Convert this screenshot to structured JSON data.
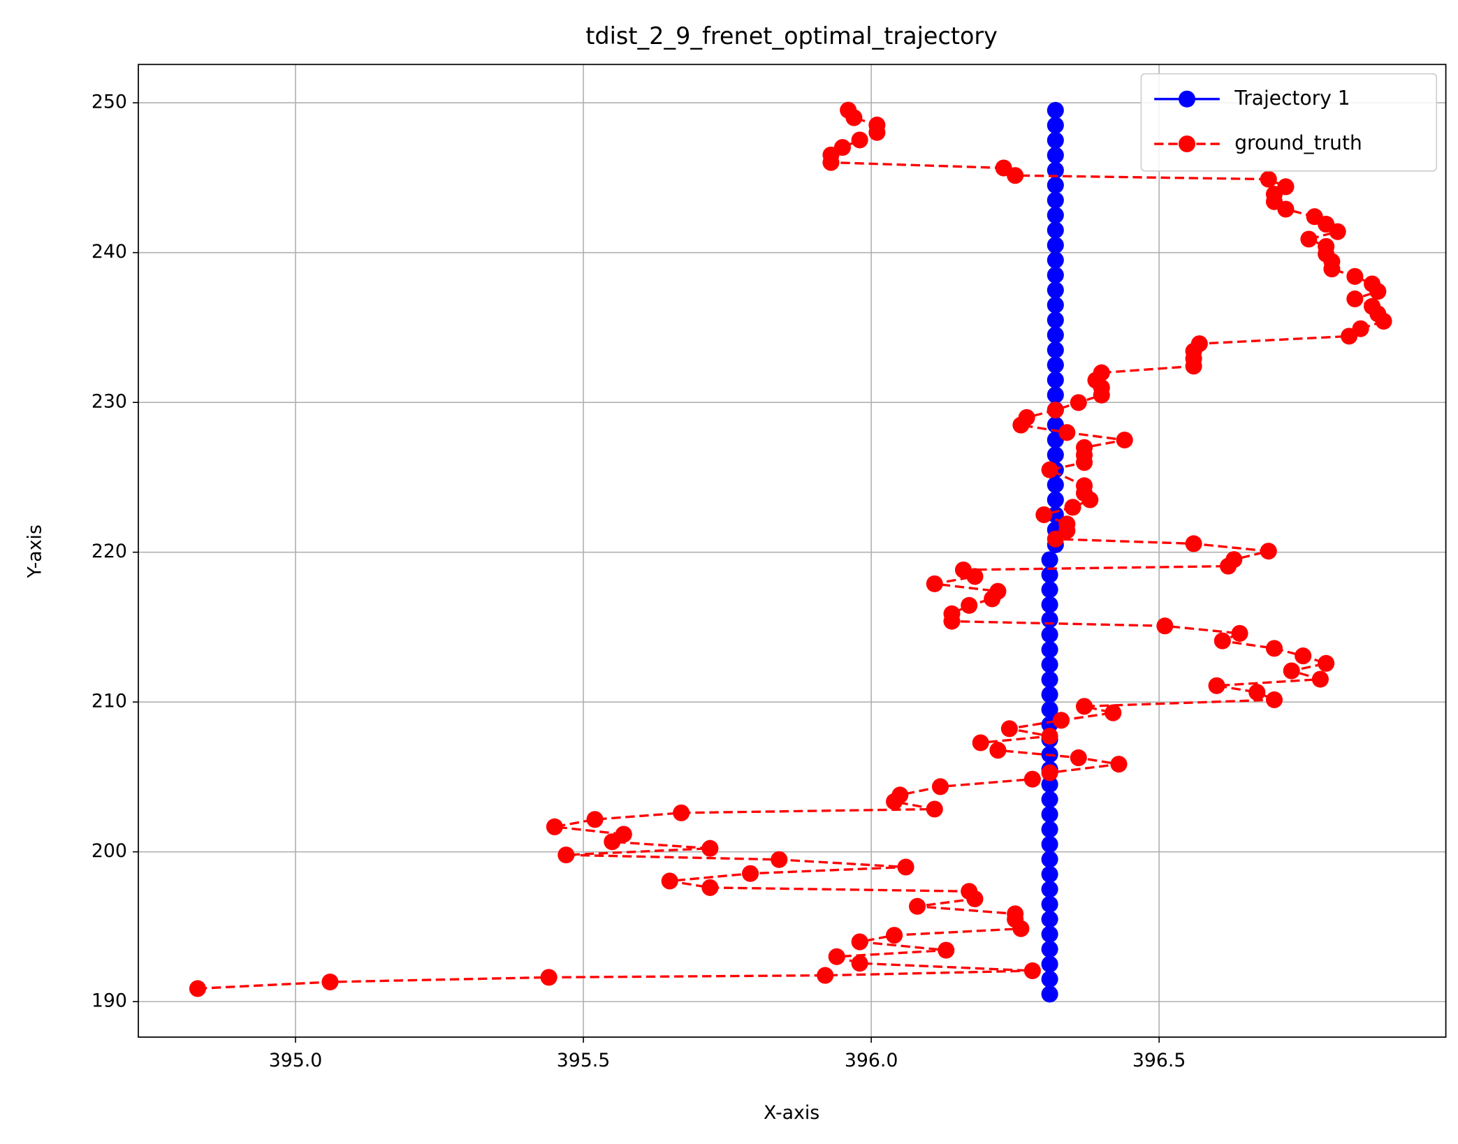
{
  "chart_data": {
    "type": "line",
    "title": "tdist_2_9_frenet_optimal_trajectory",
    "x_label": "X-axis",
    "y_label": "Y-axis",
    "xlim": [
      394.727,
      396.998
    ],
    "ylim": [
      187.63,
      252.56
    ],
    "xticks": [
      {
        "value": 395,
        "label": "395.0"
      },
      {
        "value": 395.5,
        "label": "395.5"
      },
      {
        "value": 396,
        "label": "396.0"
      },
      396.5
    ],
    "yticks": [
      190,
      200,
      210,
      220,
      230,
      240,
      250
    ],
    "grid": true,
    "legend": "upper right",
    "series": [
      {
        "name": "Trajectory 1",
        "color": "#0000ff",
        "linestyle": "solid",
        "x": [
          396.31,
          396.31,
          396.31,
          396.31,
          396.31,
          396.31,
          396.31,
          396.31,
          396.31,
          396.31,
          396.31,
          396.31,
          396.31,
          396.31,
          396.31,
          396.31,
          396.31,
          396.31,
          396.31,
          396.31,
          396.31,
          396.31,
          396.31,
          396.31,
          396.31,
          396.31,
          396.31,
          396.31,
          396.31,
          396.31,
          396.32,
          396.32,
          396.32,
          396.32,
          396.32,
          396.32,
          396.32,
          396.32,
          396.32,
          396.32,
          396.32,
          396.32,
          396.32,
          396.32,
          396.32,
          396.32,
          396.32,
          396.32,
          396.32,
          396.32,
          396.32,
          396.32,
          396.32,
          396.32,
          396.32,
          396.32,
          396.32,
          396.32,
          396.32,
          396.32
        ],
        "values": [
          190.5,
          191.5,
          192.5,
          193.5,
          194.5,
          195.5,
          196.5,
          197.5,
          198.5,
          199.5,
          200.5,
          201.5,
          202.5,
          203.5,
          204.5,
          205.5,
          206.5,
          207.5,
          208.5,
          209.5,
          210.5,
          211.5,
          212.5,
          213.5,
          214.5,
          215.5,
          216.5,
          217.5,
          218.5,
          219.5,
          220.5,
          221.5,
          222.5,
          223.5,
          224.5,
          225.5,
          226.5,
          227.5,
          228.5,
          229.5,
          230.5,
          231.5,
          232.5,
          233.5,
          234.5,
          235.5,
          236.5,
          237.5,
          238.5,
          239.5,
          240.5,
          241.5,
          242.5,
          243.5,
          244.5,
          245.5,
          246.5,
          247.5,
          248.5,
          249.5
        ]
      },
      {
        "name": "ground_truth",
        "color": "#ff0000",
        "linestyle": "dashed",
        "x": [
          394.83,
          395.06,
          395.44,
          395.92,
          396.28,
          395.98,
          395.94,
          396.13,
          395.98,
          396.04,
          396.26,
          396.25,
          396.25,
          396.08,
          396.18,
          396.17,
          395.72,
          395.65,
          395.79,
          396.06,
          395.84,
          395.47,
          395.72,
          395.55,
          395.57,
          395.45,
          395.52,
          395.67,
          396.11,
          396.04,
          396.05,
          396.12,
          396.28,
          396.31,
          396.43,
          396.36,
          396.22,
          396.19,
          396.31,
          396.24,
          396.33,
          396.42,
          396.37,
          396.7,
          396.67,
          396.6,
          396.78,
          396.73,
          396.79,
          396.75,
          396.7,
          396.61,
          396.64,
          396.51,
          396.14,
          396.14,
          396.17,
          396.21,
          396.22,
          396.11,
          396.18,
          396.16,
          396.62,
          396.63,
          396.69,
          396.56,
          396.32,
          396.34,
          396.34,
          396.3,
          396.35,
          396.38,
          396.37,
          396.37,
          396.31,
          396.37,
          396.37,
          396.37,
          396.44,
          396.34,
          396.26,
          396.27,
          396.32,
          396.36,
          396.4,
          396.4,
          396.39,
          396.4,
          396.56,
          396.56,
          396.56,
          396.57,
          396.83,
          396.85,
          396.89,
          396.88,
          396.87,
          396.84,
          396.88,
          396.87,
          396.84,
          396.8,
          396.8,
          396.79,
          396.79,
          396.76,
          396.81,
          396.79,
          396.77,
          396.72,
          396.7,
          396.7,
          396.72,
          396.69,
          396.25,
          396.23,
          395.93,
          395.93,
          395.95,
          395.98,
          396.01,
          396.01,
          395.97,
          395.96
        ],
        "values": [
          190.87,
          191.31,
          191.62,
          191.75,
          192.06,
          192.56,
          193.0,
          193.43,
          193.99,
          194.43,
          194.87,
          195.49,
          195.86,
          196.36,
          196.86,
          197.36,
          197.61,
          198.05,
          198.55,
          198.98,
          199.48,
          199.79,
          200.23,
          200.67,
          201.17,
          201.67,
          202.16,
          202.6,
          202.85,
          203.35,
          203.79,
          204.35,
          204.85,
          205.28,
          205.85,
          206.28,
          206.78,
          207.28,
          207.72,
          208.22,
          208.78,
          209.28,
          209.71,
          210.15,
          210.65,
          211.09,
          211.52,
          212.08,
          212.58,
          213.08,
          213.58,
          214.08,
          214.58,
          215.08,
          215.39,
          215.89,
          216.45,
          216.89,
          217.39,
          217.89,
          218.38,
          218.82,
          219.07,
          219.51,
          220.07,
          220.57,
          220.88,
          221.44,
          221.88,
          222.5,
          223.0,
          223.5,
          223.94,
          224.44,
          225.5,
          225.99,
          226.49,
          226.99,
          227.49,
          227.99,
          228.49,
          228.99,
          229.49,
          229.99,
          230.49,
          230.99,
          231.48,
          231.98,
          232.42,
          232.92,
          233.42,
          233.92,
          234.42,
          234.92,
          235.42,
          235.91,
          236.41,
          236.91,
          237.41,
          237.91,
          238.41,
          238.91,
          239.41,
          239.91,
          240.41,
          240.9,
          241.4,
          241.9,
          242.4,
          242.9,
          243.4,
          243.9,
          244.4,
          244.9,
          245.15,
          245.65,
          246.02,
          246.52,
          247.02,
          247.52,
          248.02,
          248.52,
          249.01,
          249.51
        ]
      }
    ]
  }
}
